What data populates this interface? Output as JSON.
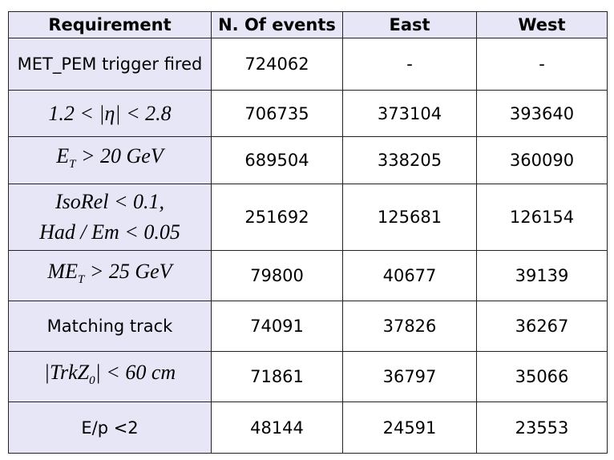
{
  "table": {
    "header": [
      "Requirement",
      "N. Of events",
      "East",
      "West"
    ],
    "rows": [
      {
        "label": "MET_PEM trigger fired",
        "cells": [
          724062,
          "-",
          "-"
        ]
      },
      {
        "label": [
          [
            {
              "text": "1.2 < |η| < 2.8"
            }
          ]
        ],
        "cells": [
          706735,
          373104,
          393640
        ]
      },
      {
        "label": [
          [
            {
              "text": "E"
            },
            {
              "text": "T",
              "sub": true
            },
            {
              "text": " > 20 GeV"
            }
          ]
        ],
        "cells": [
          689504,
          338205,
          360090
        ]
      },
      {
        "label": [
          [
            {
              "text": "IsoRel < 0.1,"
            }
          ],
          [
            {
              "text": "Had / Em < 0.05"
            }
          ]
        ],
        "cells": [
          251692,
          125681,
          126154
        ]
      },
      {
        "label": [
          [
            {
              "text": "ME"
            },
            {
              "text": "T",
              "sub": true
            },
            {
              "text": " > 25 GeV"
            }
          ]
        ],
        "cells": [
          79800,
          40677,
          39139
        ]
      },
      {
        "label": "Matching track",
        "cells": [
          74091,
          37826,
          36267
        ]
      },
      {
        "label": [
          [
            {
              "text": "|TrkZ"
            },
            {
              "text": "0",
              "sub": true
            },
            {
              "text": "| < 60 cm"
            }
          ]
        ],
        "cells": [
          71861,
          36797,
          35066
        ]
      },
      {
        "label": "E/p <2",
        "cells": [
          48144,
          24591,
          23553
        ]
      }
    ]
  }
}
